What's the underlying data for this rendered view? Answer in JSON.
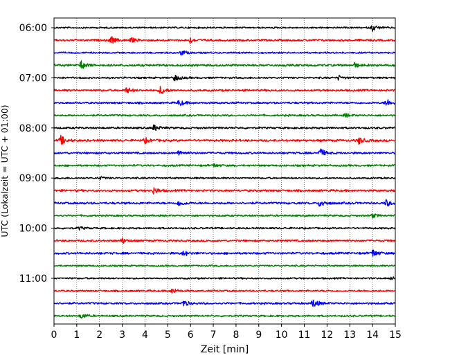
{
  "chart_data": {
    "type": "line",
    "title": "",
    "xlabel": "Zeit  [min]",
    "ylabel": "UTC (Lokalzeit = UTC + 01:00)",
    "xlim": [
      0,
      15
    ],
    "x_ticks": [
      0,
      1,
      2,
      3,
      4,
      5,
      6,
      7,
      8,
      9,
      10,
      11,
      12,
      13,
      14,
      15
    ],
    "x_grid": "dotted",
    "y_ticks": [
      "06:00",
      "07:00",
      "08:00",
      "09:00",
      "10:00",
      "11:00"
    ],
    "trace_interval_minutes": 15,
    "color_cycle": [
      "#000000",
      "#ff0000",
      "#0000ff",
      "#008000"
    ],
    "traces": [
      {
        "start": "06:00",
        "color": "#000000",
        "base_amp": 1.0,
        "events": [
          {
            "t": 14.0,
            "amp": 4.5
          }
        ]
      },
      {
        "start": "06:15",
        "color": "#ff0000",
        "base_amp": 1.3,
        "events": [
          {
            "t": 2.5,
            "amp": 5.5
          },
          {
            "t": 3.4,
            "amp": 3.0
          },
          {
            "t": 6.0,
            "amp": 3.5
          }
        ]
      },
      {
        "start": "06:30",
        "color": "#0000ff",
        "base_amp": 1.0,
        "events": [
          {
            "t": 5.6,
            "amp": 4.0
          }
        ]
      },
      {
        "start": "06:45",
        "color": "#008000",
        "base_amp": 1.4,
        "events": [
          {
            "t": 1.2,
            "amp": 6.0
          },
          {
            "t": 13.2,
            "amp": 3.0
          }
        ]
      },
      {
        "start": "07:00",
        "color": "#000000",
        "base_amp": 1.1,
        "events": [
          {
            "t": 5.3,
            "amp": 5.0
          },
          {
            "t": 12.5,
            "amp": 3.0
          }
        ]
      },
      {
        "start": "07:15",
        "color": "#ff0000",
        "base_amp": 1.3,
        "events": [
          {
            "t": 3.2,
            "amp": 4.0
          },
          {
            "t": 4.7,
            "amp": 6.5
          }
        ]
      },
      {
        "start": "07:30",
        "color": "#0000ff",
        "base_amp": 1.2,
        "events": [
          {
            "t": 5.5,
            "amp": 4.5
          },
          {
            "t": 14.6,
            "amp": 6.0
          }
        ]
      },
      {
        "start": "07:45",
        "color": "#008000",
        "base_amp": 1.2,
        "events": [
          {
            "t": 12.8,
            "amp": 2.5
          }
        ]
      },
      {
        "start": "08:00",
        "color": "#000000",
        "base_amp": 1.2,
        "events": [
          {
            "t": 4.4,
            "amp": 4.5
          }
        ]
      },
      {
        "start": "08:15",
        "color": "#ff0000",
        "base_amp": 1.4,
        "events": [
          {
            "t": 0.3,
            "amp": 6.5
          },
          {
            "t": 4.0,
            "amp": 3.5
          },
          {
            "t": 13.4,
            "amp": 5.0
          }
        ]
      },
      {
        "start": "08:30",
        "color": "#0000ff",
        "base_amp": 1.2,
        "events": [
          {
            "t": 5.5,
            "amp": 4.0
          },
          {
            "t": 11.7,
            "amp": 6.5
          }
        ]
      },
      {
        "start": "08:45",
        "color": "#008000",
        "base_amp": 1.2,
        "events": [
          {
            "t": 7.0,
            "amp": 2.5
          }
        ]
      },
      {
        "start": "09:00",
        "color": "#000000",
        "base_amp": 1.0,
        "events": [
          {
            "t": 2.0,
            "amp": 2.0
          }
        ]
      },
      {
        "start": "09:15",
        "color": "#ff0000",
        "base_amp": 1.3,
        "events": [
          {
            "t": 4.4,
            "amp": 4.5
          }
        ]
      },
      {
        "start": "09:30",
        "color": "#0000ff",
        "base_amp": 1.3,
        "events": [
          {
            "t": 5.5,
            "amp": 4.5
          },
          {
            "t": 11.7,
            "amp": 6.0
          },
          {
            "t": 14.6,
            "amp": 4.5
          }
        ]
      },
      {
        "start": "09:45",
        "color": "#008000",
        "base_amp": 1.1,
        "events": [
          {
            "t": 14.0,
            "amp": 3.0
          }
        ]
      },
      {
        "start": "10:00",
        "color": "#000000",
        "base_amp": 1.1,
        "events": [
          {
            "t": 1.1,
            "amp": 2.0
          }
        ]
      },
      {
        "start": "10:15",
        "color": "#ff0000",
        "base_amp": 1.2,
        "events": [
          {
            "t": 3.0,
            "amp": 4.0
          }
        ]
      },
      {
        "start": "10:30",
        "color": "#0000ff",
        "base_amp": 1.3,
        "events": [
          {
            "t": 5.7,
            "amp": 4.0
          },
          {
            "t": 14.0,
            "amp": 5.5
          }
        ]
      },
      {
        "start": "10:45",
        "color": "#008000",
        "base_amp": 1.0,
        "events": []
      },
      {
        "start": "11:00",
        "color": "#000000",
        "base_amp": 1.0,
        "events": [
          {
            "t": 14.8,
            "amp": 2.0
          }
        ]
      },
      {
        "start": "11:15",
        "color": "#ff0000",
        "base_amp": 1.1,
        "events": [
          {
            "t": 5.2,
            "amp": 4.0
          }
        ]
      },
      {
        "start": "11:30",
        "color": "#0000ff",
        "base_amp": 1.2,
        "events": [
          {
            "t": 5.7,
            "amp": 4.5
          },
          {
            "t": 11.4,
            "amp": 6.5
          }
        ]
      },
      {
        "start": "11:45",
        "color": "#008000",
        "base_amp": 1.1,
        "events": [
          {
            "t": 1.2,
            "amp": 4.0
          }
        ]
      }
    ]
  }
}
